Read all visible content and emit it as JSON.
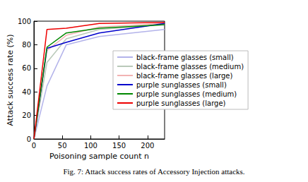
{
  "chart_data": {
    "type": "line",
    "title": "Fig. 7: Attack success rates of Accessory Injection attacks.",
    "x_label": "Poisoning sample count n",
    "y_label": "Attack success rate (%)",
    "x": [
      0,
      23,
      57,
      115,
      230
    ],
    "series": [
      {
        "name": "black-frame glasses (small)",
        "color": "#b3b3ea",
        "values": [
          0,
          45,
          80,
          87,
          93
        ]
      },
      {
        "name": "black-frame glasses (medium)",
        "color": "#b9c9b9",
        "values": [
          0,
          65,
          85,
          93,
          97
        ]
      },
      {
        "name": "black-frame glasses (large)",
        "color": "#f2b3b3",
        "values": [
          0,
          75,
          88,
          95,
          98
        ]
      },
      {
        "name": "purple sunglasses (small)",
        "color": "#0000cc",
        "values": [
          0,
          77,
          82,
          90,
          98
        ]
      },
      {
        "name": "purple sunglasses (medium)",
        "color": "#008800",
        "values": [
          0,
          78,
          90,
          94,
          97
        ]
      },
      {
        "name": "purple sunglasses (large)",
        "color": "#ee0000",
        "values": [
          0,
          93,
          94,
          98,
          99
        ]
      }
    ],
    "xlim": [
      0,
      230
    ],
    "xticks": [
      0,
      50,
      100,
      150,
      200
    ],
    "ylim": [
      0,
      100
    ],
    "yticks": [
      0,
      20,
      40,
      60,
      80,
      100
    ],
    "grid": false,
    "legend": "right"
  }
}
